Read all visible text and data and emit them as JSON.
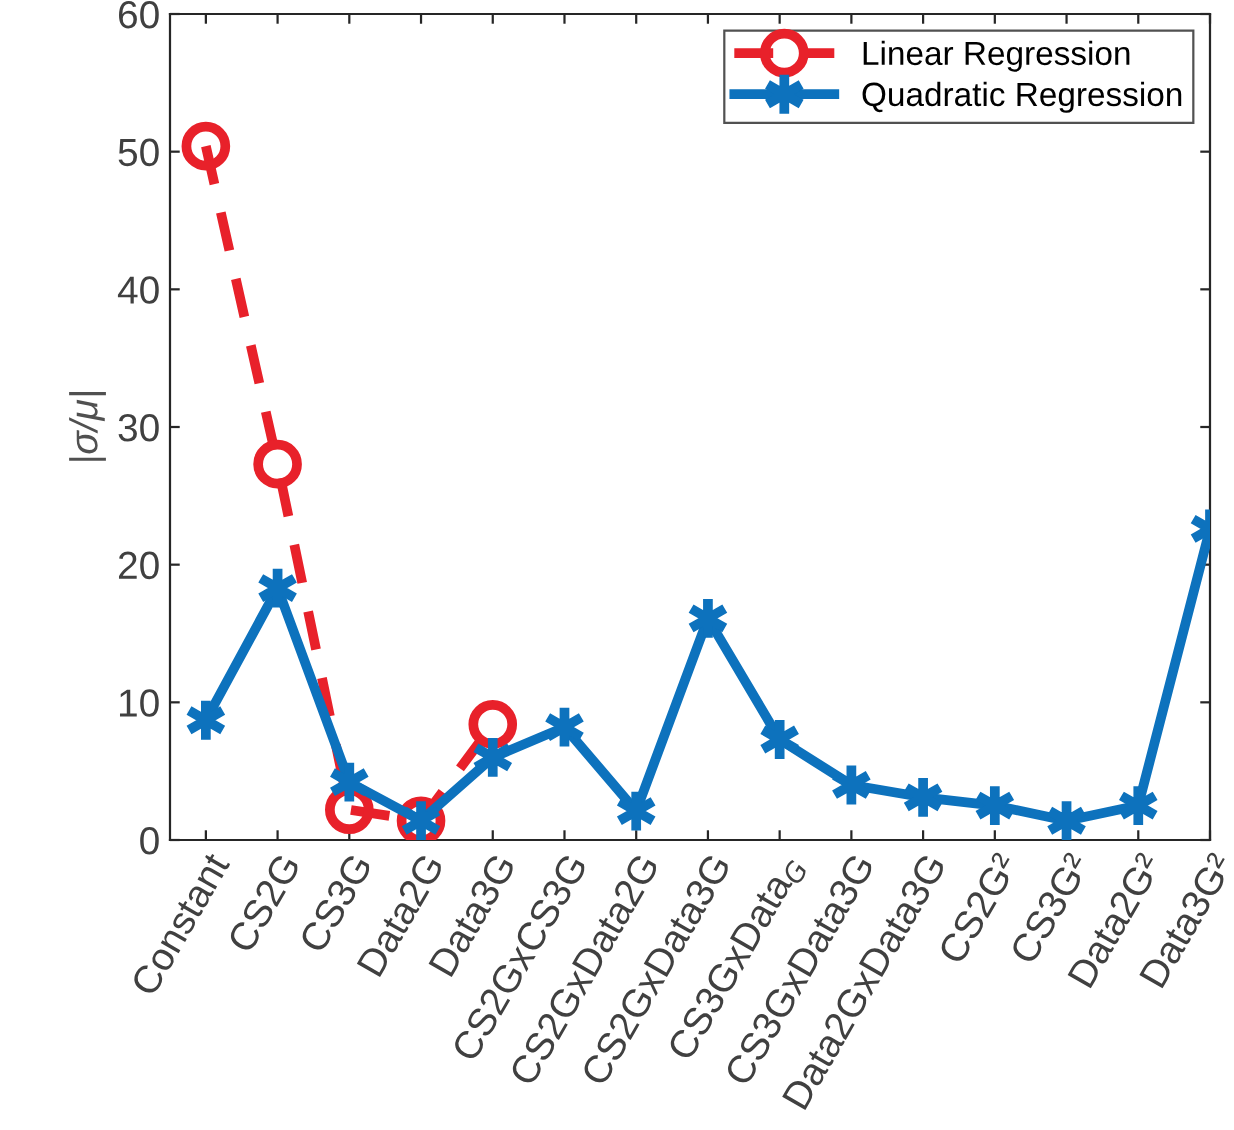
{
  "chart_data": {
    "type": "line",
    "ylabel": "|σ/μ|",
    "categories": [
      "Constant",
      "CS2G",
      "CS3G",
      "Data2G",
      "Data3G",
      "CS2GxCS3G",
      "CS2GxData2G",
      "CS2GxData3G",
      "CS3GxData$_{G}$",
      "CS3GxData3G",
      "Data2GxData3G",
      "CS2G²",
      "CS3G²",
      "Data2G²",
      "Data3G²"
    ],
    "series": [
      {
        "name": "Linear Regression",
        "color": "#e8212a",
        "marker": "circle",
        "line_style": "dashed",
        "values": [
          50.4,
          27.3,
          2.2,
          1.4,
          8.4,
          null,
          null,
          null,
          null,
          null,
          null,
          null,
          null,
          null,
          null
        ]
      },
      {
        "name": "Quadratic Regression",
        "color": "#0d72bd",
        "marker": "cross",
        "line_style": "solid",
        "values": [
          8.7,
          18.3,
          4.2,
          1.4,
          6.0,
          8.2,
          2.1,
          16.1,
          7.3,
          4.0,
          3.1,
          2.5,
          1.4,
          2.5,
          22.6
        ]
      }
    ],
    "ylim": [
      0,
      60
    ],
    "yticks": [
      0,
      10,
      20,
      30,
      40,
      50,
      60
    ],
    "grid": false,
    "legend": "top right"
  }
}
